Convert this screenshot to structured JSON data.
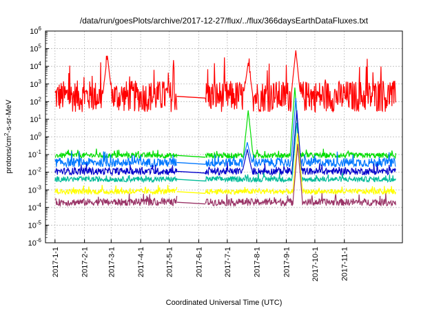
{
  "chart_data": {
    "type": "line",
    "title": "/data/run/goesPlots/archive/2017-12-27/flux/../flux/366daysEarthDataFluxes.txt",
    "xlabel": "Coordinated Universal Time (UTC)",
    "ylabel_parts": [
      "protons/cm",
      "2",
      "-s-sr-MeV"
    ],
    "y_scale": "log",
    "ylim_exp": [
      -6,
      6
    ],
    "y_ticks": [
      {
        "base": "10",
        "exp": "6"
      },
      {
        "base": "10",
        "exp": "5"
      },
      {
        "base": "10",
        "exp": "4"
      },
      {
        "base": "10",
        "exp": "3"
      },
      {
        "base": "10",
        "exp": "2"
      },
      {
        "base": "10",
        "exp": "1"
      },
      {
        "base": "10",
        "exp": "0"
      },
      {
        "base": "10",
        "exp": "-1"
      },
      {
        "base": "10",
        "exp": "-2"
      },
      {
        "base": "10",
        "exp": "-3"
      },
      {
        "base": "10",
        "exp": "-4"
      },
      {
        "base": "10",
        "exp": "-5"
      },
      {
        "base": "10",
        "exp": "-6"
      }
    ],
    "xlim_days": [
      -10,
      365
    ],
    "x_ticks": [
      {
        "label": "2017-1-1",
        "day": 0
      },
      {
        "label": "2017-2-1",
        "day": 31
      },
      {
        "label": "2017-3-1",
        "day": 59
      },
      {
        "label": "2017-4-1",
        "day": 90
      },
      {
        "label": "2017-5-1",
        "day": 120
      },
      {
        "label": "2017-6-1",
        "day": 151
      },
      {
        "label": "2017-7-1",
        "day": 181
      },
      {
        "label": "2017-8-1",
        "day": 212
      },
      {
        "label": "2017-9-1",
        "day": 243
      },
      {
        "label": "2017-10-1",
        "day": 273
      },
      {
        "label": "2017-11-1",
        "day": 304
      }
    ],
    "grid": true,
    "data_gap_days": [
      128,
      158
    ],
    "series": [
      {
        "color": "#ff0000",
        "base_exp": 2.3,
        "noise_exp": 0.9,
        "spikes": [
          {
            "day": 55,
            "exp": 4.6
          },
          {
            "day": 203,
            "exp": 4.2
          },
          {
            "day": 253,
            "exp": 4.9
          }
        ]
      },
      {
        "color": "#00dd00",
        "base_exp": -1.05,
        "noise_exp": 0.15,
        "spikes": [
          {
            "day": 203,
            "exp": 1.5
          },
          {
            "day": 252,
            "exp": 2.8
          }
        ]
      },
      {
        "color": "#0077ff",
        "base_exp": -1.45,
        "noise_exp": 0.25,
        "spikes": [
          {
            "day": 202,
            "exp": -0.3
          },
          {
            "day": 253,
            "exp": 2.2
          }
        ]
      },
      {
        "color": "#0000cc",
        "base_exp": -1.95,
        "noise_exp": 0.2,
        "spikes": [
          {
            "day": 202,
            "exp": -0.7
          },
          {
            "day": 254,
            "exp": 1.5
          }
        ]
      },
      {
        "color": "#00bb99",
        "base_exp": -2.4,
        "noise_exp": 0.15,
        "spikes": [
          {
            "day": 254,
            "exp": 0.8
          }
        ]
      },
      {
        "color": "#ffff00",
        "base_exp": -3.1,
        "noise_exp": 0.15,
        "spikes": [
          {
            "day": 255,
            "exp": 0.2
          }
        ]
      },
      {
        "color": "#993366",
        "base_exp": -3.7,
        "noise_exp": 0.2,
        "spikes": [
          {
            "day": 255,
            "exp": -0.4
          }
        ]
      }
    ]
  }
}
